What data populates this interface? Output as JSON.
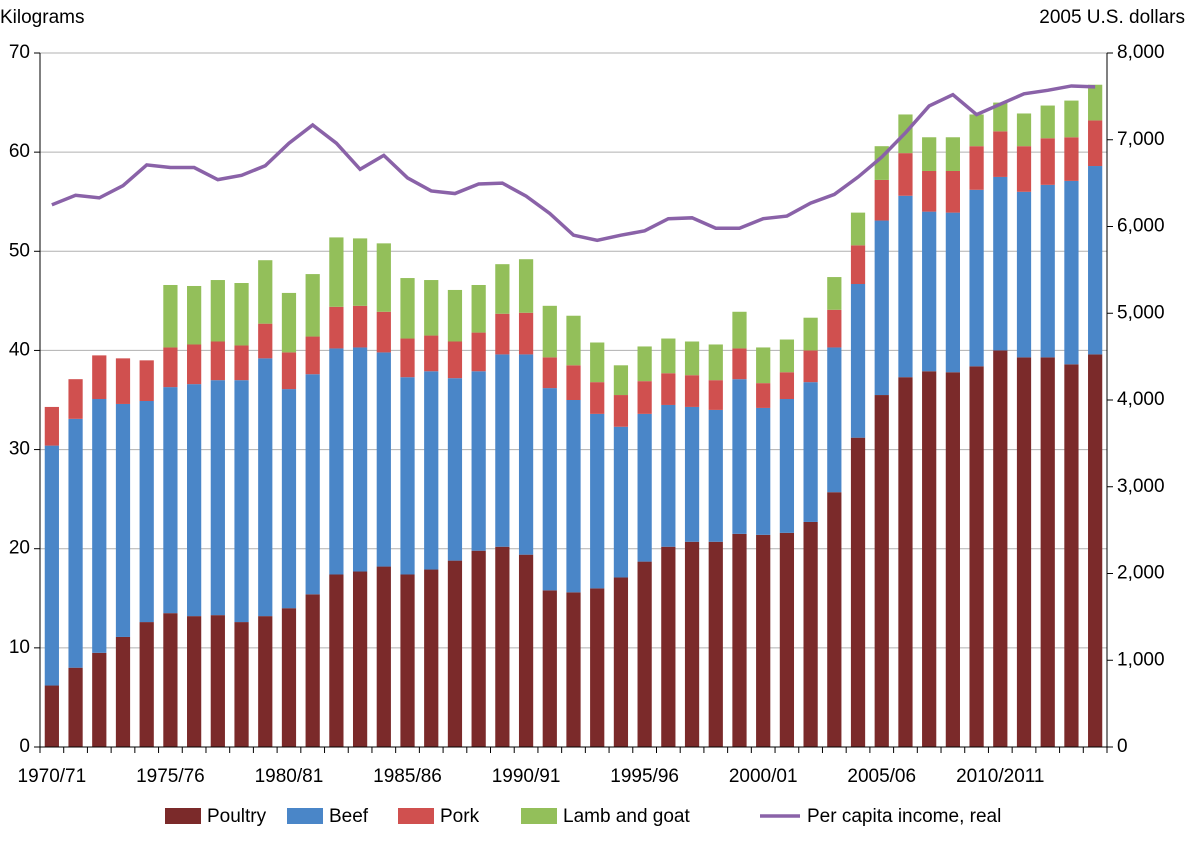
{
  "chart_data": {
    "type": "bar",
    "y_label": "Kilograms",
    "y2_label": "2005 U.S. dollars",
    "categories": [
      "1970/71",
      null,
      null,
      null,
      null,
      "1975/76",
      null,
      null,
      null,
      null,
      "1980/81",
      null,
      null,
      null,
      null,
      "1985/86",
      null,
      null,
      null,
      null,
      "1990/91",
      null,
      null,
      null,
      null,
      "1995/96",
      null,
      null,
      null,
      null,
      "2000/01",
      null,
      null,
      null,
      null,
      "2005/06",
      null,
      null,
      null,
      null,
      "2010/2011",
      null,
      null,
      null,
      null
    ],
    "stacked": true,
    "series": [
      {
        "name": "Poultry",
        "color": "#7b2a2a",
        "values": [
          6.2,
          8.0,
          9.5,
          11.1,
          12.6,
          13.5,
          13.2,
          13.3,
          12.6,
          13.2,
          14.0,
          15.4,
          17.4,
          17.7,
          18.2,
          17.4,
          17.9,
          18.8,
          19.8,
          20.2,
          19.4,
          15.8,
          15.6,
          16.0,
          17.1,
          18.7,
          20.2,
          20.7,
          20.7,
          21.5,
          21.4,
          21.6,
          22.7,
          25.7,
          31.2,
          35.5,
          37.3,
          37.9,
          37.8,
          38.4,
          40.0,
          39.3,
          39.3,
          38.6,
          39.6
        ]
      },
      {
        "name": "Beef",
        "color": "#4a86c8",
        "values": [
          24.2,
          25.1,
          25.6,
          23.5,
          22.3,
          22.8,
          23.4,
          23.7,
          24.4,
          26.0,
          22.1,
          22.2,
          22.8,
          22.6,
          21.6,
          19.9,
          20.0,
          18.4,
          18.1,
          19.4,
          20.2,
          20.4,
          19.4,
          17.6,
          15.2,
          14.9,
          14.3,
          13.6,
          13.3,
          15.6,
          12.8,
          13.5,
          14.1,
          14.6,
          15.5,
          17.6,
          18.3,
          16.1,
          16.1,
          17.8,
          17.5,
          16.7,
          17.4,
          18.5,
          19.0
        ]
      },
      {
        "name": "Pork",
        "color": "#d0504f",
        "values": [
          3.9,
          4.0,
          4.4,
          4.6,
          4.1,
          4.0,
          4.0,
          3.9,
          3.5,
          3.5,
          3.7,
          3.8,
          4.2,
          4.2,
          4.1,
          3.9,
          3.6,
          3.7,
          3.9,
          4.1,
          4.2,
          3.1,
          3.5,
          3.2,
          3.2,
          3.3,
          3.2,
          3.2,
          3.0,
          3.1,
          2.5,
          2.7,
          3.2,
          3.8,
          3.9,
          4.1,
          4.3,
          4.1,
          4.2,
          4.4,
          4.6,
          4.6,
          4.7,
          4.4,
          4.6
        ]
      },
      {
        "name": "Lamb and goat",
        "color": "#93bf5a",
        "values": [
          0,
          0,
          0,
          0,
          0,
          6.3,
          5.9,
          6.2,
          6.3,
          6.4,
          6.0,
          6.3,
          7.0,
          6.8,
          6.9,
          6.1,
          5.6,
          5.2,
          4.8,
          5.0,
          5.4,
          5.2,
          5.0,
          4.0,
          3.0,
          3.5,
          3.5,
          3.4,
          3.6,
          3.7,
          3.6,
          3.3,
          3.3,
          3.3,
          3.3,
          3.4,
          3.9,
          3.4,
          3.4,
          3.2,
          2.9,
          3.3,
          3.3,
          3.7,
          3.6
        ]
      },
      {
        "name": "Per capita income, real",
        "color": "#8a62a8",
        "type": "line",
        "axis": "y2",
        "values": [
          6250,
          6360,
          6330,
          6470,
          6710,
          6680,
          6680,
          6540,
          6590,
          6700,
          6960,
          7170,
          6960,
          6660,
          6820,
          6560,
          6410,
          6380,
          6490,
          6500,
          6350,
          6150,
          5900,
          5840,
          5900,
          5950,
          6090,
          6100,
          5980,
          5980,
          6090,
          6120,
          6270,
          6370,
          6570,
          6800,
          7080,
          7390,
          7520,
          7290,
          7410,
          7530,
          7570,
          7620,
          7610
        ]
      }
    ],
    "ylim": [
      0,
      70
    ],
    "yticks": [
      0,
      10,
      20,
      30,
      40,
      50,
      60,
      70
    ],
    "y2lim": [
      0,
      8000
    ],
    "y2ticks": [
      0,
      {
        "value": 1000,
        "label": "1,000"
      },
      {
        "value": 2000,
        "label": "2,000"
      },
      {
        "value": 3000,
        "label": "3,000"
      },
      {
        "value": 4000,
        "label": "4,000"
      },
      {
        "value": 5000,
        "label": "5,000"
      },
      {
        "value": 6000,
        "label": "6,000"
      },
      {
        "value": 7000,
        "label": "7,000"
      },
      {
        "value": 8000,
        "label": "8,000"
      }
    ],
    "grid": true,
    "legend": "bottom"
  }
}
